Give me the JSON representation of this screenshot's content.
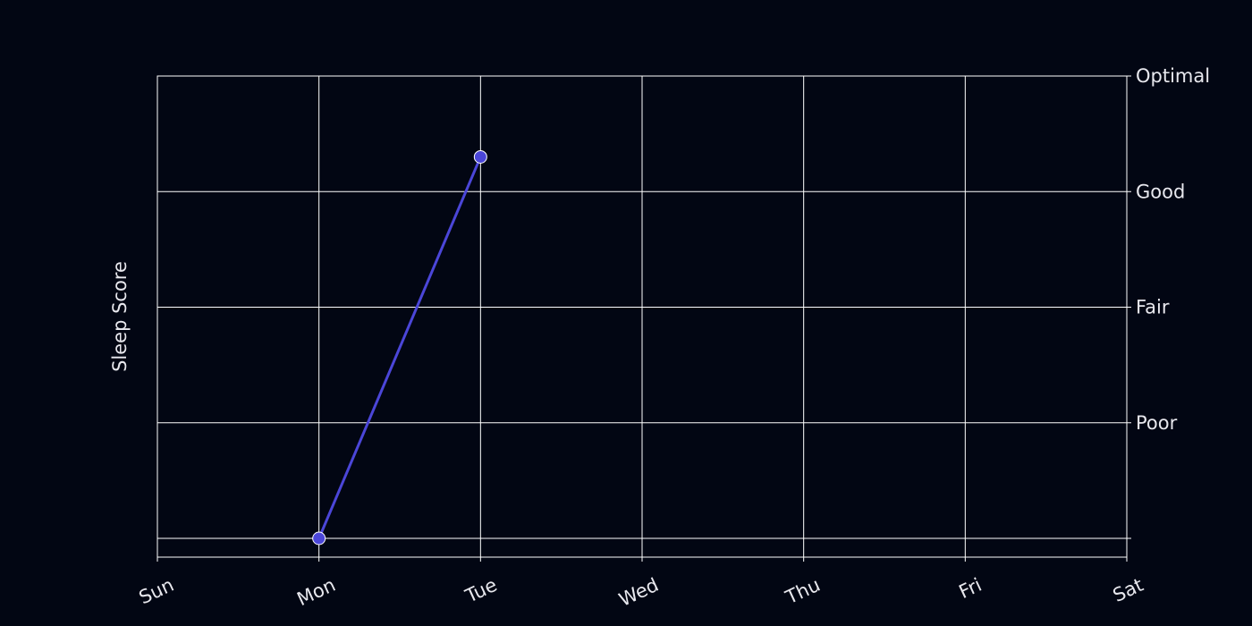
{
  "colors": {
    "background": "#020613",
    "grid": "#ffffff",
    "series": "#4b46d8",
    "text": "#e8e8ee"
  },
  "chart_data": {
    "type": "line",
    "x": [
      "Sun",
      "Mon",
      "Tue",
      "Wed",
      "Thu",
      "Fri",
      "Sat"
    ],
    "ylabel": "Sleep Score",
    "xlabel": "",
    "title": "",
    "ylim": [
      0,
      4.2
    ],
    "y_ticks": [
      {
        "value": 0.2,
        "label": ""
      },
      {
        "value": 1.2,
        "label": "Poor"
      },
      {
        "value": 2.2,
        "label": "Fair"
      },
      {
        "value": 3.2,
        "label": "Good"
      },
      {
        "value": 4.2,
        "label": "Optimal"
      }
    ],
    "y_tick_side": "right",
    "grid": true,
    "series": [
      {
        "points": [
          {
            "x": "Mon",
            "y": 0.2
          },
          {
            "x": "Tue",
            "y": 3.5
          }
        ]
      }
    ]
  }
}
